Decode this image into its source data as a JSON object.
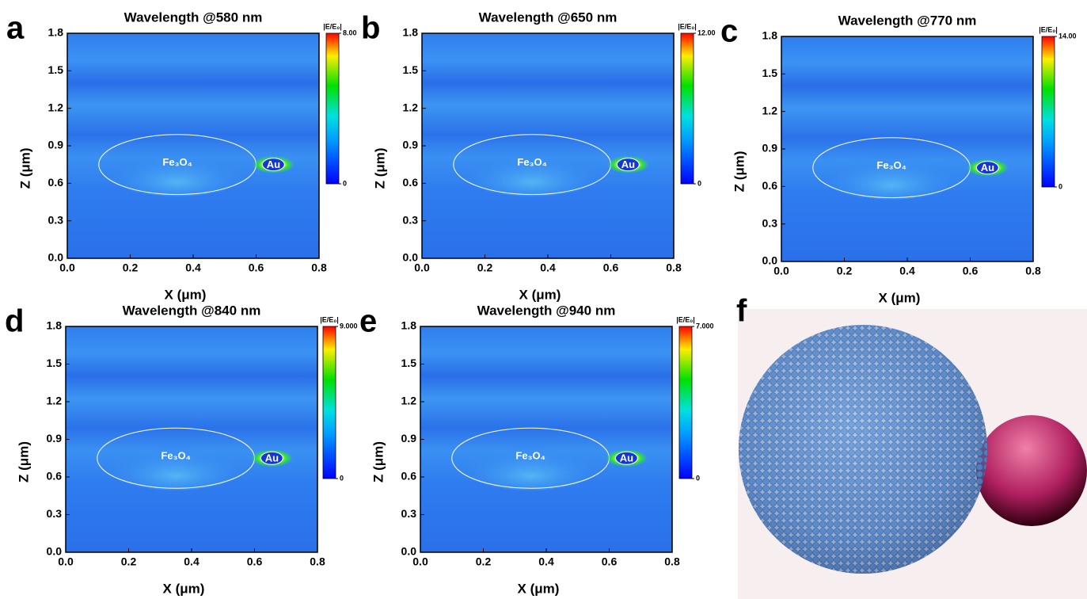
{
  "chart_data": [
    {
      "type": "heatmap",
      "panel": "a",
      "title": "Wavelength @580 nm",
      "xlabel": "X (μm)",
      "ylabel": "Z (μm)",
      "xlim": [
        0,
        0.8
      ],
      "ylim": [
        0,
        1.8
      ],
      "xticks": [
        {
          "value": 0,
          "label": "0.0"
        },
        0.2,
        0.4,
        0.6,
        0.8
      ],
      "yticks": [
        {
          "value": 0,
          "label": "0.0"
        },
        0.3,
        0.6,
        0.9,
        1.2,
        1.5,
        1.8
      ],
      "colorbar_label": "|E/E₀|",
      "clim": [
        0,
        8
      ],
      "cticks": [
        0,
        {
          "value": 8,
          "label": "8.00"
        }
      ],
      "annotations": [
        "Fe₃O₄",
        "Au"
      ]
    },
    {
      "type": "heatmap",
      "panel": "b",
      "title": "Wavelength @650 nm",
      "xlabel": "X (μm)",
      "ylabel": "Z (μm)",
      "xlim": [
        0,
        0.8
      ],
      "ylim": [
        0,
        1.8
      ],
      "xticks": [
        {
          "value": 0,
          "label": "0.0"
        },
        0.2,
        0.4,
        0.6,
        0.8
      ],
      "yticks": [
        {
          "value": 0,
          "label": "0.0"
        },
        0.3,
        0.6,
        0.9,
        1.2,
        1.5,
        1.8
      ],
      "colorbar_label": "|E/E₀|",
      "clim": [
        0,
        12
      ],
      "cticks": [
        0,
        {
          "value": 12,
          "label": "12.00"
        }
      ],
      "annotations": [
        "Fe₃O₄",
        "Au"
      ]
    },
    {
      "type": "heatmap",
      "panel": "c",
      "title": "Wavelength @770 nm",
      "xlabel": "X (μm)",
      "ylabel": "Z (μm)",
      "xlim": [
        0,
        0.8
      ],
      "ylim": [
        0,
        1.8
      ],
      "xticks": [
        {
          "value": 0,
          "label": "0.0"
        },
        0.2,
        0.4,
        0.6,
        0.8
      ],
      "yticks": [
        {
          "value": 0,
          "label": "0.0"
        },
        0.3,
        0.6,
        0.9,
        1.2,
        1.5,
        1.8
      ],
      "colorbar_label": "|E/E₀|",
      "clim": [
        0,
        14
      ],
      "cticks": [
        0,
        {
          "value": 14,
          "label": "14.00"
        }
      ],
      "annotations": [
        "Fe₃O₄",
        "Au"
      ]
    },
    {
      "type": "heatmap",
      "panel": "d",
      "title": "Wavelength @840 nm",
      "xlabel": "X (μm)",
      "ylabel": "Z (μm)",
      "xlim": [
        0,
        0.8
      ],
      "ylim": [
        0,
        1.8
      ],
      "xticks": [
        {
          "value": 0,
          "label": "0.0"
        },
        0.2,
        0.4,
        0.6,
        0.8
      ],
      "yticks": [
        {
          "value": 0,
          "label": "0.0"
        },
        0.3,
        0.6,
        0.9,
        1.2,
        1.5,
        1.8
      ],
      "colorbar_label": "|E/E₀|",
      "clim": [
        0,
        9
      ],
      "cticks": [
        0,
        {
          "value": 9,
          "label": "9.000"
        }
      ],
      "annotations": [
        "Fe₃O₄",
        "Au"
      ]
    },
    {
      "type": "heatmap",
      "panel": "e",
      "title": "Wavelength @940 nm",
      "xlabel": "X (μm)",
      "ylabel": "Z (μm)",
      "xlim": [
        0,
        0.8
      ],
      "ylim": [
        0,
        1.8
      ],
      "xticks": [
        {
          "value": 0,
          "label": "0.0"
        },
        0.2,
        0.4,
        0.6,
        0.8
      ],
      "yticks": [
        {
          "value": 0,
          "label": "0.0"
        },
        0.3,
        0.6,
        0.9,
        1.2,
        1.5,
        1.8
      ],
      "colorbar_label": "|E/E₀|",
      "clim": [
        0,
        7
      ],
      "cticks": [
        0,
        {
          "value": 7,
          "label": "7.000"
        }
      ],
      "annotations": [
        "Fe₃O₄",
        "Au"
      ]
    }
  ],
  "panel_f": {
    "label": "f"
  }
}
